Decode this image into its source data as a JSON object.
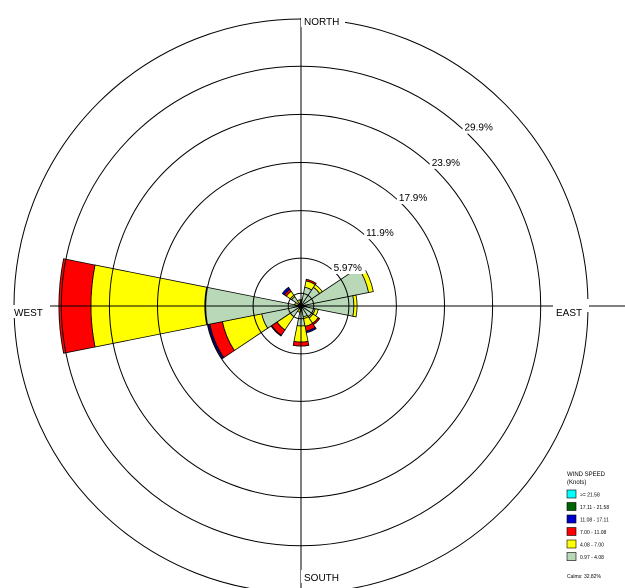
{
  "chart_data": {
    "type": "windrose",
    "directions": {
      "north": "NORTH",
      "south": "SOUTH",
      "east": "EAST",
      "west": "WEST"
    },
    "ring_labels": [
      "5.97%",
      "11.9%",
      "17.9%",
      "23.9%",
      "29.9%"
    ],
    "ring_values": [
      5.97,
      11.9,
      17.9,
      23.9,
      29.9
    ],
    "radial_max": 35.8,
    "sector_count": 16,
    "calm_circle_value": 1.6,
    "legend": {
      "title_line1": "WIND SPEED",
      "title_line2": "(Knots)",
      "items": [
        {
          "label": ">= 21.58",
          "color": "#00ffff"
        },
        {
          "label": "17.11 - 21.58",
          "color": "#006400"
        },
        {
          "label": "11.08 - 17.11",
          "color": "#0000cc"
        },
        {
          "label": "7.00 - 11.08",
          "color": "#ff0000"
        },
        {
          "label": "4.08 - 7.00",
          "color": "#ffff00"
        },
        {
          "label": "0.97 - 4.08",
          "color": "#b8d8b8"
        }
      ],
      "calms_label": "Calms: 32.82%"
    },
    "series": [
      {
        "name": "0.97 - 4.08",
        "values": [
          0.4,
          2.4,
          2.8,
          8.6,
          6.6,
          1.8,
          1.8,
          1.4,
          2.5,
          0.4,
          1.6,
          5.0,
          12.0,
          0.4,
          1.4,
          0.4
        ]
      },
      {
        "name": "4.08 - 7.00",
        "values": [
          0.4,
          0.8,
          0.4,
          0.6,
          0.4,
          0.4,
          0.8,
          1.2,
          2.0,
          0.4,
          2.0,
          5.0,
          14.2,
          0.4,
          0.8,
          0.4
        ]
      },
      {
        "name": "7.00 - 11.08",
        "values": [
          0.0,
          0.2,
          0.0,
          0.0,
          0.0,
          0.0,
          0.2,
          0.6,
          0.5,
          0.0,
          0.8,
          1.6,
          4.0,
          0.0,
          0.3,
          0.0
        ]
      },
      {
        "name": "11.08 - 17.11",
        "values": [
          0.0,
          0.0,
          0.0,
          0.0,
          0.0,
          0.0,
          0.0,
          0.2,
          0.0,
          0.0,
          0.1,
          0.2,
          0.0,
          0.0,
          0.3,
          0.0
        ]
      },
      {
        "name": "17.11 - 21.58",
        "values": [
          0,
          0,
          0,
          0,
          0,
          0,
          0,
          0,
          0,
          0,
          0,
          0,
          0,
          0,
          0,
          0
        ]
      },
      {
        "name": ">= 21.58",
        "values": [
          0,
          0,
          0,
          0,
          0,
          0,
          0,
          0,
          0,
          0,
          0,
          0,
          0,
          0,
          0,
          0
        ]
      }
    ]
  }
}
